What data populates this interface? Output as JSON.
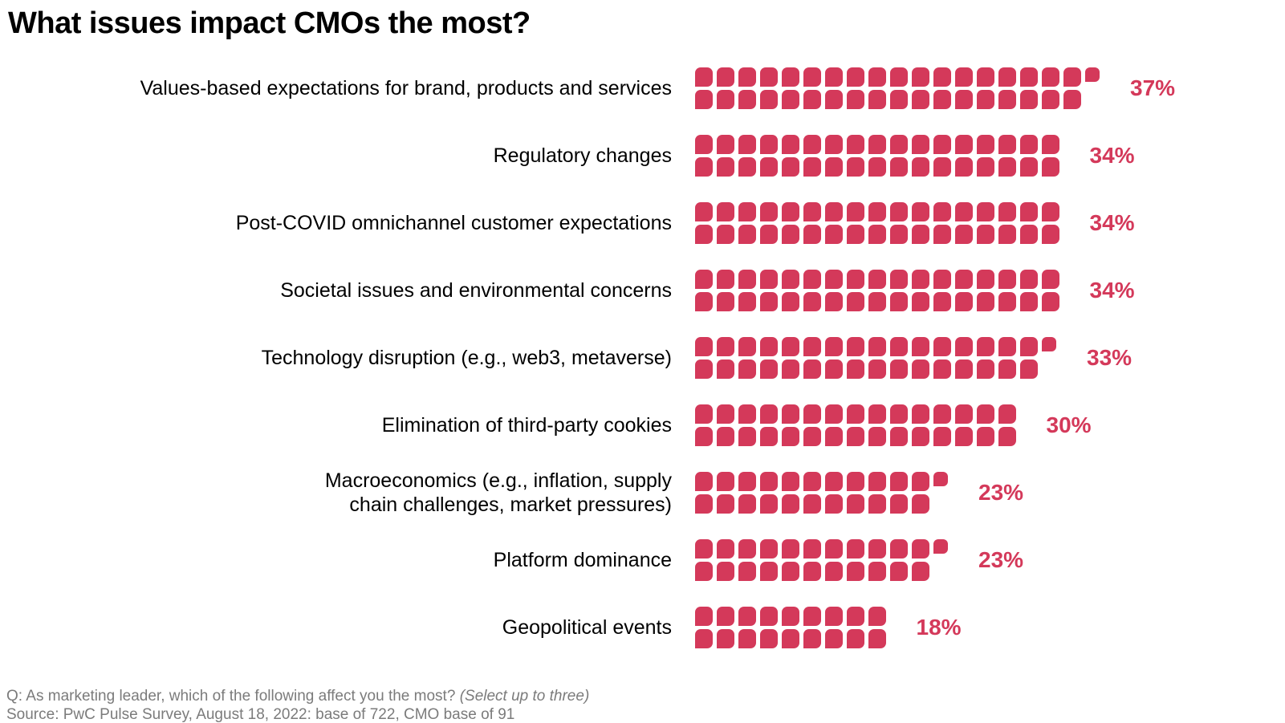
{
  "page": {
    "background": "#ffffff"
  },
  "header": {
    "title": "What issues impact CMOs the most?"
  },
  "colors": {
    "accent": "#d4395a",
    "text": "#000000",
    "muted": "#7b7b7b"
  },
  "chart_data": {
    "type": "bar",
    "variant": "waffle-pictogram",
    "orientation": "horizontal",
    "unit_percent_per_square": 1,
    "squares_layout": "two stacked rows per category; odd remainder drawn as one smaller top-aligned square at end of top row",
    "title": "What issues impact CMOs the most?",
    "categories": [
      "Values-based expectations for brand, products and services",
      "Regulatory changes",
      "Post-COVID omnichannel customer expectations",
      "Societal issues and environmental concerns",
      "Technology disruption (e.g., web3, metaverse)",
      "Elimination of third-party cookies",
      "Macroeconomics (e.g., inflation, supply\nchain challenges, market pressures)",
      "Platform dominance",
      "Geopolitical events"
    ],
    "values": [
      37,
      34,
      34,
      34,
      33,
      30,
      23,
      23,
      18
    ],
    "value_labels": [
      "37%",
      "34%",
      "34%",
      "34%",
      "33%",
      "30%",
      "23%",
      "23%",
      "18%"
    ],
    "value_suffix": "%",
    "xlabel": "",
    "ylabel": "",
    "axis": "none",
    "grid": false,
    "legend": "none"
  },
  "footer": {
    "question_prefix": "Q: As marketing leader, which of the following affect you the most? ",
    "question_italic": "(Select up to three)",
    "source": "Source: PwC Pulse Survey, August 18, 2022: base of 722, CMO base of 91"
  }
}
